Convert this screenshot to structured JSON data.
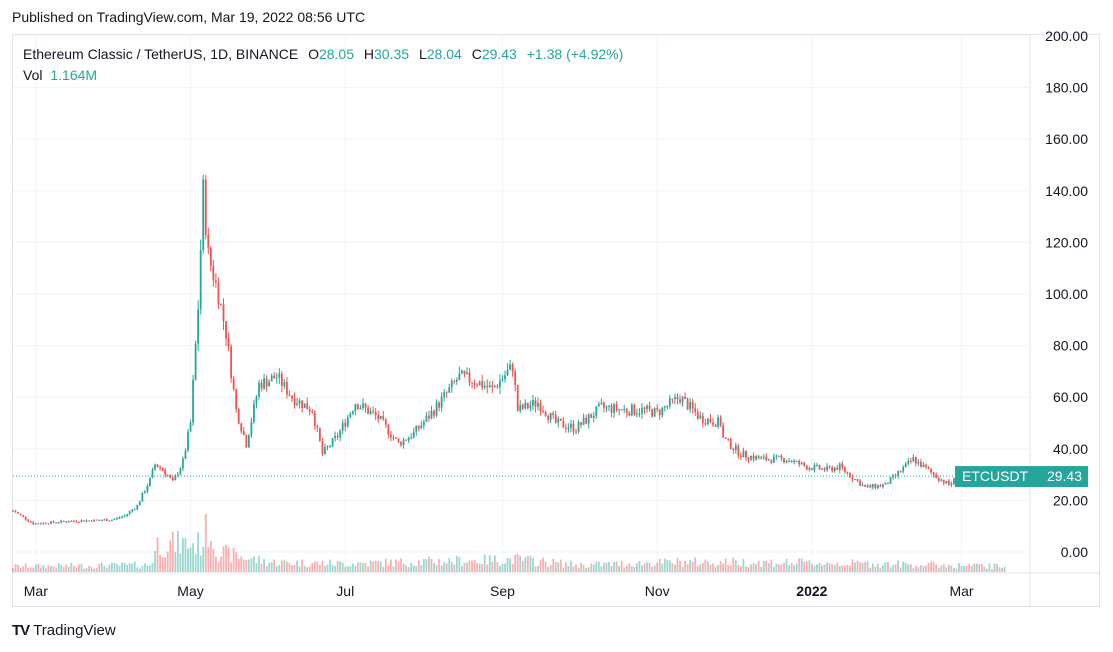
{
  "published": "Published on TradingView.com, Mar 19, 2022 08:56 UTC",
  "brand": {
    "logo_text": "TV",
    "name": "TradingView"
  },
  "legend": {
    "symbol": "Ethereum Classic / TetherUS, 1D, BINANCE",
    "o_label": "O",
    "o_value": "28.05",
    "h_label": "H",
    "h_value": "30.35",
    "l_label": "L",
    "l_value": "28.04",
    "c_label": "C",
    "c_value": "29.43",
    "change": "+1.38 (+4.92%)"
  },
  "volume_legend": {
    "label": "Vol",
    "value": "1.164M"
  },
  "price_tag": {
    "ticker": "ETCUSDT",
    "value": "29.43"
  },
  "colors": {
    "up": "#26a69a",
    "down": "#ef5350",
    "grid": "#f0f3fa",
    "axis": "#e0e3eb"
  },
  "chart_data": {
    "type": "candlestick",
    "title": "Ethereum Classic / TetherUS, 1D, BINANCE",
    "ylim": [
      0,
      200
    ],
    "y_ticks": [
      "200.00",
      "180.00",
      "160.00",
      "140.00",
      "120.00",
      "100.00",
      "80.00",
      "60.00",
      "40.00",
      "20.00",
      "0.00"
    ],
    "x_ticks": [
      {
        "label": "Mar",
        "date": "2021-03-01",
        "bold": false
      },
      {
        "label": "May",
        "date": "2021-05-01",
        "bold": false
      },
      {
        "label": "Jul",
        "date": "2021-07-01",
        "bold": false
      },
      {
        "label": "Sep",
        "date": "2021-09-01",
        "bold": false
      },
      {
        "label": "Nov",
        "date": "2021-11-01",
        "bold": false
      },
      {
        "label": "2022",
        "date": "2022-01-01",
        "bold": true
      },
      {
        "label": "Mar",
        "date": "2022-03-01",
        "bold": false
      }
    ],
    "x_range": [
      "2021-02-20",
      "2022-03-28"
    ],
    "last_date": "2022-03-18",
    "close_keypoints": [
      [
        "2021-02-20",
        16
      ],
      [
        "2021-02-28",
        11
      ],
      [
        "2021-03-15",
        12
      ],
      [
        "2021-03-31",
        12.5
      ],
      [
        "2021-04-05",
        14
      ],
      [
        "2021-04-10",
        18
      ],
      [
        "2021-04-15",
        28
      ],
      [
        "2021-04-17",
        34
      ],
      [
        "2021-04-20",
        32
      ],
      [
        "2021-04-24",
        27
      ],
      [
        "2021-04-28",
        35
      ],
      [
        "2021-05-01",
        50
      ],
      [
        "2021-05-04",
        95
      ],
      [
        "2021-05-06",
        140
      ],
      [
        "2021-05-08",
        115
      ],
      [
        "2021-05-12",
        100
      ],
      [
        "2021-05-15",
        85
      ],
      [
        "2021-05-19",
        55
      ],
      [
        "2021-05-23",
        42
      ],
      [
        "2021-05-28",
        65
      ],
      [
        "2021-06-04",
        68
      ],
      [
        "2021-06-10",
        60
      ],
      [
        "2021-06-18",
        55
      ],
      [
        "2021-06-22",
        38
      ],
      [
        "2021-06-28",
        45
      ],
      [
        "2021-07-05",
        58
      ],
      [
        "2021-07-14",
        52
      ],
      [
        "2021-07-22",
        42
      ],
      [
        "2021-07-28",
        46
      ],
      [
        "2021-08-05",
        55
      ],
      [
        "2021-08-15",
        68
      ],
      [
        "2021-08-22",
        66
      ],
      [
        "2021-08-28",
        63
      ],
      [
        "2021-09-05",
        72
      ],
      [
        "2021-09-07",
        55
      ],
      [
        "2021-09-15",
        58
      ],
      [
        "2021-09-22",
        50
      ],
      [
        "2021-09-30",
        48
      ],
      [
        "2021-10-10",
        56
      ],
      [
        "2021-10-20",
        55
      ],
      [
        "2021-10-26",
        55
      ],
      [
        "2021-11-01",
        54
      ],
      [
        "2021-11-10",
        60
      ],
      [
        "2021-11-18",
        52
      ],
      [
        "2021-11-26",
        50
      ],
      [
        "2021-11-27",
        44
      ],
      [
        "2021-12-04",
        38
      ],
      [
        "2021-12-12",
        36
      ],
      [
        "2021-12-22",
        36
      ],
      [
        "2021-12-30",
        33
      ],
      [
        "2022-01-07",
        32
      ],
      [
        "2022-01-12",
        33
      ],
      [
        "2022-01-22",
        25
      ],
      [
        "2022-01-30",
        26
      ],
      [
        "2022-02-10",
        36
      ],
      [
        "2022-02-18",
        30
      ],
      [
        "2022-02-24",
        26
      ],
      [
        "2022-03-01",
        30
      ],
      [
        "2022-03-10",
        27
      ],
      [
        "2022-03-18",
        29.43
      ]
    ],
    "volume_keypoints": [
      [
        "2021-02-20",
        0.2
      ],
      [
        "2021-04-15",
        0.25
      ],
      [
        "2021-04-18",
        1.0
      ],
      [
        "2021-05-05",
        1.0
      ],
      [
        "2021-05-08",
        1.6
      ],
      [
        "2021-05-12",
        0.7
      ],
      [
        "2021-06-01",
        0.35
      ],
      [
        "2021-07-01",
        0.3
      ],
      [
        "2021-09-07",
        0.45
      ],
      [
        "2021-10-01",
        0.25
      ],
      [
        "2021-11-10",
        0.35
      ],
      [
        "2021-12-04",
        0.35
      ],
      [
        "2022-01-22",
        0.3
      ],
      [
        "2022-03-18",
        0.2
      ]
    ]
  }
}
